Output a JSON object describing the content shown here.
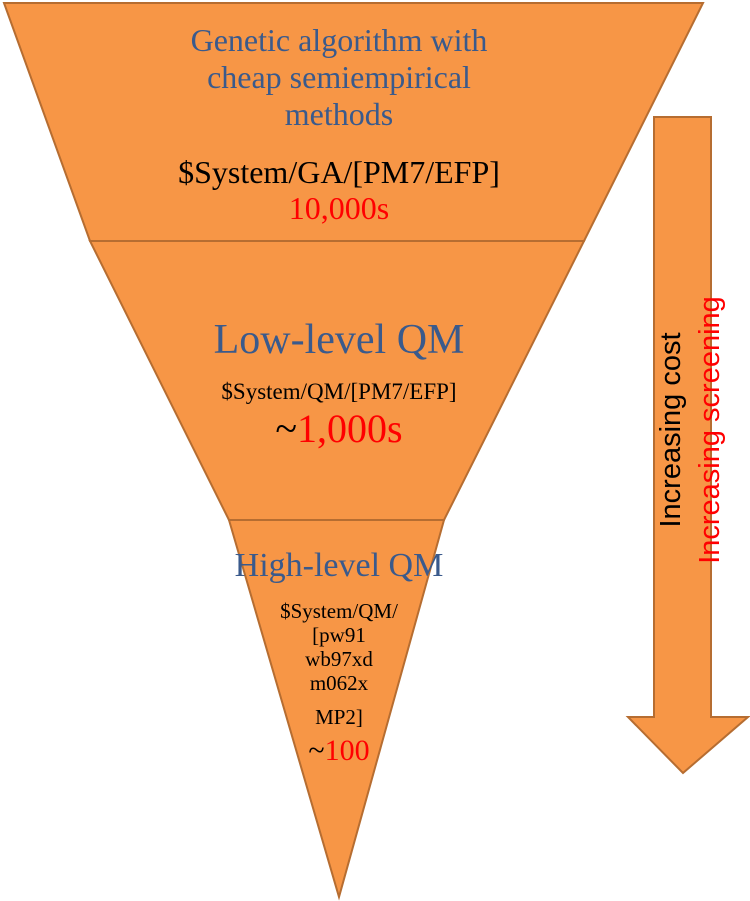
{
  "colors": {
    "fill": "#F79646",
    "stroke": "#B66D31",
    "title_blue": "#3A5A8C",
    "text_black": "#000000",
    "text_red": "#FF0000"
  },
  "tiers": [
    {
      "title_lines": [
        "Genetic algorithm with",
        "cheap semiempirical",
        "methods"
      ],
      "method": "$System/GA/[PM7/EFP]",
      "count_prefix": "",
      "count": "10,000s"
    },
    {
      "title_lines": [
        "Low-level QM"
      ],
      "method": "$System/QM/[PM7/EFP]",
      "count_prefix": "~",
      "count": "1,000s"
    },
    {
      "title_lines": [
        "High-level QM"
      ],
      "method_lines": [
        "$System/QM/",
        "[pw91",
        "wb97xd",
        "m062x",
        "MP2]"
      ],
      "count_prefix": "~",
      "count": "100"
    }
  ],
  "arrow": {
    "label_cost": "Increasing cost",
    "label_screening": "Increasing screening"
  }
}
